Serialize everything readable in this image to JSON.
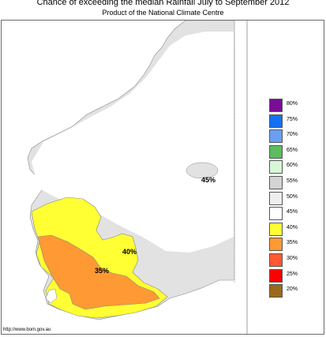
{
  "header": {
    "title": "Chance of exceeding the median Rainfall July to September 2012",
    "subtitle": "Product of the National Climate Centre"
  },
  "footer": {
    "source_text": "http://www.bom.gov.au"
  },
  "map": {
    "region_labels": [
      "45%",
      "40%",
      "35%"
    ]
  },
  "legend": {
    "items": [
      {
        "label": "80%",
        "color": "#7a0d96"
      },
      {
        "label": "75%",
        "color": "#1570f0"
      },
      {
        "label": "70%",
        "color": "#6b9ff2"
      },
      {
        "label": "65%",
        "color": "#5dbb60"
      },
      {
        "label": "60%",
        "color": "#d8f7d6"
      },
      {
        "label": "55%",
        "color": "#d4d4d4"
      },
      {
        "label": "50%",
        "color": "#eeeeee"
      },
      {
        "label": "45%",
        "color": "#ffffff"
      },
      {
        "label": "40%",
        "color": "#ffff33"
      },
      {
        "label": "35%",
        "color": "#ff9933"
      },
      {
        "label": "30%",
        "color": "#ff5a33"
      },
      {
        "label": "25%",
        "color": "#ff0000"
      },
      {
        "label": "20%",
        "color": "#9a6a1a"
      }
    ]
  }
}
